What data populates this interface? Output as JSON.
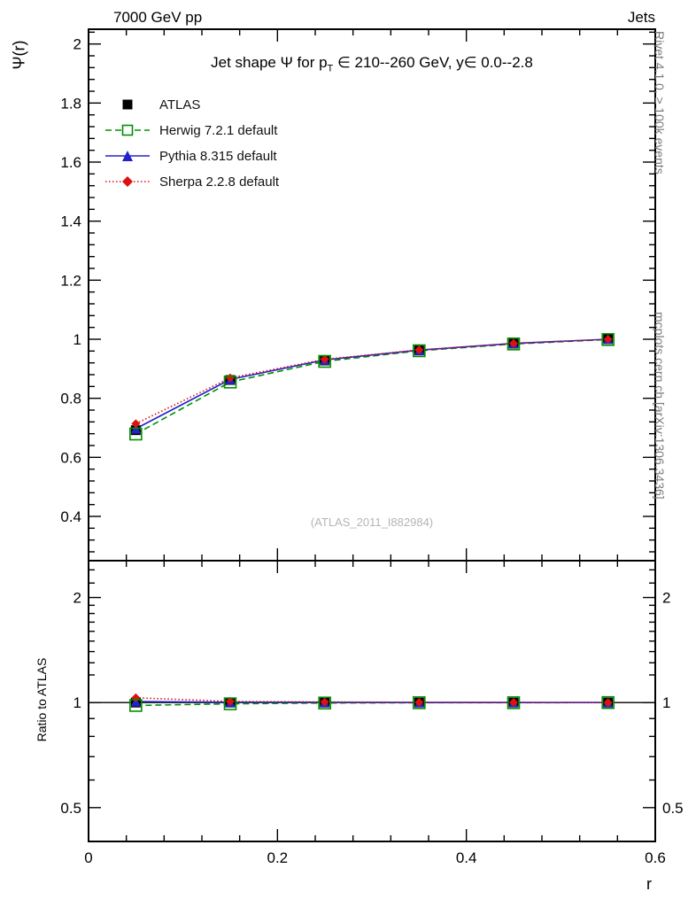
{
  "header": {
    "left": "7000 GeV pp",
    "right": "Jets"
  },
  "title_parts": {
    "pre": "Jet shape Ψ for p",
    "sub": "T",
    "post": " ∈ 210--260 GeV, y∈ 0.0--2.8"
  },
  "right_margin": {
    "top": "Rivet 4.1.0, ≥ 100k events",
    "bottom": "mcplots.cern.ch [arXiv:1306.3436]"
  },
  "watermark": "(ATLAS_2011_I882984)",
  "chart_data": {
    "type": "line",
    "title": "Jet shape Ψ for p_T ∈ 210--260 GeV, y ∈ 0.0--2.8",
    "xlabel": "r",
    "ylabel": "Ψ(r)",
    "ratio_ylabel": "Ratio to ATLAS",
    "x": [
      0.05,
      0.15,
      0.25,
      0.35,
      0.45,
      0.55
    ],
    "xlim": [
      0,
      0.6
    ],
    "ylim": [
      0.25,
      2.05
    ],
    "ratio_ylim": [
      0.4,
      2.55
    ],
    "ratio_scale": "log",
    "xticks": [
      0,
      0.2,
      0.4,
      0.6
    ],
    "yticks": [
      0.4,
      0.6,
      0.8,
      1,
      1.2,
      1.4,
      1.6,
      1.8,
      2
    ],
    "ratio_yticks": [
      0.5,
      1,
      2
    ],
    "grid": false,
    "legend_position": "top-left",
    "series": [
      {
        "name": "ATLAS",
        "color": "#000000",
        "marker": "square-filled",
        "line": "none",
        "values": [
          0.692,
          0.862,
          0.928,
          0.962,
          0.985,
          1.0
        ],
        "ratio": [
          1,
          1,
          1,
          1,
          1,
          1
        ]
      },
      {
        "name": "Herwig 7.2.1 default",
        "color": "#008f00",
        "marker": "square-open",
        "line": "dashed",
        "values": [
          0.679,
          0.855,
          0.925,
          0.961,
          0.984,
          0.999
        ],
        "ratio": [
          0.981,
          0.992,
          0.997,
          0.999,
          0.999,
          1.0
        ]
      },
      {
        "name": "Pythia 8.315 default",
        "color": "#2222cc",
        "marker": "triangle-filled",
        "line": "solid",
        "values": [
          0.697,
          0.864,
          0.93,
          0.963,
          0.986,
          1.0
        ],
        "ratio": [
          1.007,
          1.002,
          1.002,
          1.001,
          1.001,
          1.0
        ]
      },
      {
        "name": "Sherpa 2.2.8 default",
        "color": "#dd1111",
        "marker": "diamond-filled",
        "line": "dotted",
        "values": [
          0.714,
          0.869,
          0.932,
          0.964,
          0.986,
          1.0
        ],
        "ratio": [
          1.032,
          1.008,
          1.004,
          1.002,
          1.001,
          1.0
        ]
      }
    ]
  }
}
